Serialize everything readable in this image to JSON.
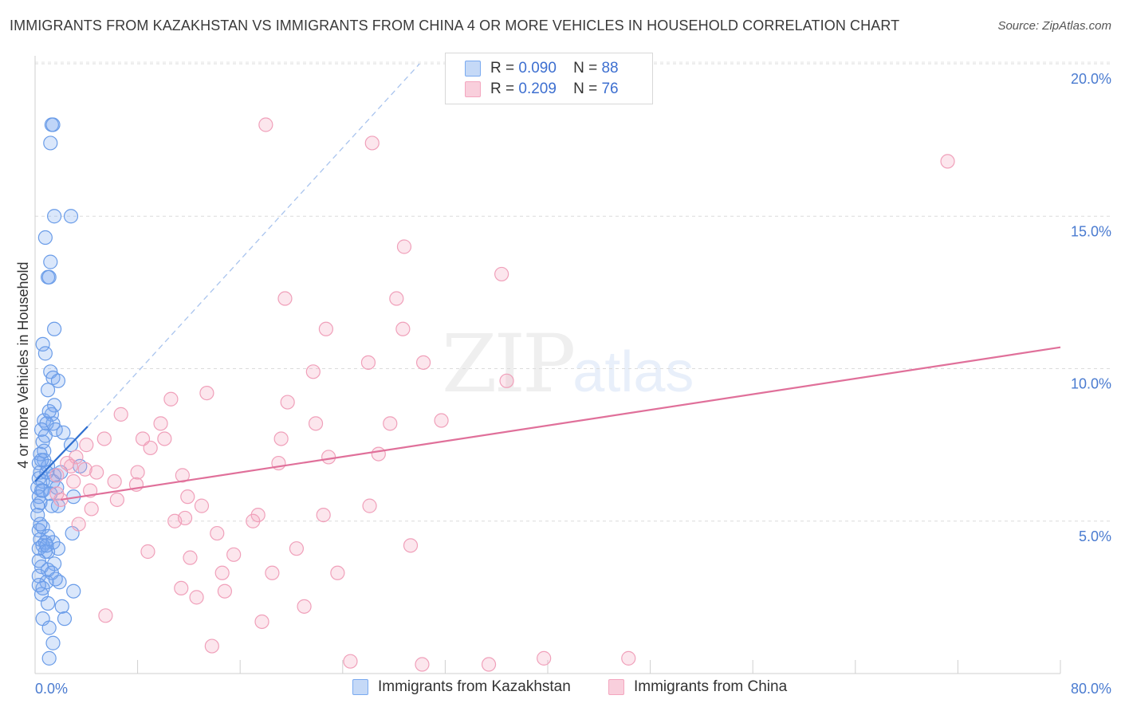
{
  "title": "IMMIGRANTS FROM KAZAKHSTAN VS IMMIGRANTS FROM CHINA 4 OR MORE VEHICLES IN HOUSEHOLD CORRELATION CHART",
  "source": "Source: ZipAtlas.com",
  "watermark": {
    "zip": "ZIP",
    "atlas": "atlas"
  },
  "legend": {
    "kazakhstan": {
      "r_label": "R =",
      "r_value": "0.090",
      "n_label": "N =",
      "n_value": "88"
    },
    "china": {
      "r_label": "R =",
      "r_value": "0.209",
      "n_label": "N =",
      "n_value": "76"
    }
  },
  "colors": {
    "kazakhstan": "#7aaaf0",
    "china": "#f4a6bf",
    "kaz_line": "#2f6fd0",
    "china_line": "#e0709a",
    "axis_text": "#4a7bd0"
  },
  "chart_data": {
    "type": "scatter",
    "title": "IMMIGRANTS FROM KAZAKHSTAN VS IMMIGRANTS FROM CHINA 4 OR MORE VEHICLES IN HOUSEHOLD CORRELATION CHART",
    "xlabel": "",
    "ylabel": "4 or more Vehicles in Household",
    "xlim": [
      0,
      80
    ],
    "ylim": [
      0,
      21
    ],
    "x_tick_labels": [
      "0.0%",
      "80.0%"
    ],
    "y_ticks": [
      5,
      10,
      15,
      20
    ],
    "y_tick_labels": [
      "5.0%",
      "10.0%",
      "15.0%",
      "20.0%"
    ],
    "legend_position": "top-center",
    "series": [
      {
        "name": "Immigrants from Kazakhstan",
        "r": 0.09,
        "n": 88,
        "trend": {
          "x": [
            0,
            4.1
          ],
          "y": [
            6.3,
            8.1
          ],
          "extended_x": [
            4.1,
            30
          ],
          "extended_y": [
            8.1,
            20.0
          ]
        },
        "points": [
          [
            1.3,
            18.0
          ],
          [
            1.4,
            18.0
          ],
          [
            1.2,
            17.4
          ],
          [
            1.5,
            15.0
          ],
          [
            2.8,
            15.0
          ],
          [
            0.8,
            14.3
          ],
          [
            1.2,
            13.5
          ],
          [
            1.0,
            13.0
          ],
          [
            1.1,
            13.0
          ],
          [
            1.5,
            11.3
          ],
          [
            0.6,
            10.8
          ],
          [
            0.8,
            10.5
          ],
          [
            1.2,
            9.9
          ],
          [
            1.4,
            9.7
          ],
          [
            1.8,
            9.6
          ],
          [
            1.0,
            9.3
          ],
          [
            1.5,
            8.8
          ],
          [
            1.3,
            8.5
          ],
          [
            0.7,
            8.3
          ],
          [
            1.4,
            8.2
          ],
          [
            0.9,
            8.2
          ],
          [
            0.5,
            8.0
          ],
          [
            1.6,
            8.0
          ],
          [
            0.8,
            7.8
          ],
          [
            0.6,
            7.6
          ],
          [
            2.8,
            7.5
          ],
          [
            0.4,
            7.2
          ],
          [
            0.7,
            7.0
          ],
          [
            0.3,
            6.9
          ],
          [
            1.0,
            6.8
          ],
          [
            3.5,
            6.8
          ],
          [
            0.4,
            6.6
          ],
          [
            1.5,
            6.5
          ],
          [
            0.3,
            6.4
          ],
          [
            0.6,
            6.3
          ],
          [
            1.4,
            6.3
          ],
          [
            0.2,
            6.1
          ],
          [
            0.5,
            6.0
          ],
          [
            0.3,
            5.8
          ],
          [
            3.0,
            5.8
          ],
          [
            0.4,
            5.6
          ],
          [
            0.2,
            5.5
          ],
          [
            1.3,
            5.5
          ],
          [
            1.8,
            5.5
          ],
          [
            0.6,
            4.8
          ],
          [
            0.3,
            4.7
          ],
          [
            2.9,
            4.6
          ],
          [
            1.0,
            4.5
          ],
          [
            0.4,
            4.4
          ],
          [
            0.8,
            4.3
          ],
          [
            1.4,
            4.3
          ],
          [
            0.6,
            4.2
          ],
          [
            0.3,
            4.1
          ],
          [
            1.8,
            4.1
          ],
          [
            1.0,
            4.0
          ],
          [
            1.5,
            3.6
          ],
          [
            0.5,
            3.5
          ],
          [
            1.0,
            3.4
          ],
          [
            1.3,
            3.3
          ],
          [
            0.3,
            3.2
          ],
          [
            0.9,
            3.0
          ],
          [
            1.9,
            3.0
          ],
          [
            0.6,
            2.8
          ],
          [
            3.0,
            2.7
          ],
          [
            0.5,
            2.6
          ],
          [
            1.0,
            2.3
          ],
          [
            2.1,
            2.2
          ],
          [
            0.6,
            1.8
          ],
          [
            2.3,
            1.8
          ],
          [
            1.1,
            1.5
          ],
          [
            1.4,
            1.0
          ],
          [
            1.1,
            0.5
          ],
          [
            0.9,
            6.6
          ],
          [
            0.5,
            7.0
          ],
          [
            1.7,
            6.1
          ],
          [
            0.2,
            5.2
          ],
          [
            0.8,
            4.0
          ],
          [
            0.3,
            3.7
          ],
          [
            2.2,
            7.9
          ],
          [
            1.1,
            8.6
          ],
          [
            0.6,
            6.0
          ],
          [
            0.4,
            4.9
          ],
          [
            1.2,
            5.9
          ],
          [
            0.7,
            7.3
          ],
          [
            0.9,
            4.2
          ],
          [
            1.6,
            3.1
          ],
          [
            0.3,
            2.9
          ],
          [
            2.0,
            6.6
          ]
        ]
      },
      {
        "name": "Immigrants from China",
        "r": 0.209,
        "n": 76,
        "trend": {
          "x": [
            2.0,
            80.0
          ],
          "y": [
            5.7,
            10.7
          ]
        },
        "points": [
          [
            18.0,
            18.0
          ],
          [
            26.3,
            17.4
          ],
          [
            71.2,
            16.8
          ],
          [
            28.8,
            14.0
          ],
          [
            36.4,
            13.1
          ],
          [
            19.5,
            12.3
          ],
          [
            28.2,
            12.3
          ],
          [
            22.7,
            11.3
          ],
          [
            28.7,
            11.3
          ],
          [
            26.0,
            10.2
          ],
          [
            30.3,
            10.2
          ],
          [
            21.7,
            9.9
          ],
          [
            36.8,
            9.6
          ],
          [
            13.4,
            9.2
          ],
          [
            10.6,
            9.0
          ],
          [
            19.7,
            8.9
          ],
          [
            6.7,
            8.5
          ],
          [
            9.8,
            8.2
          ],
          [
            21.9,
            8.2
          ],
          [
            27.7,
            8.2
          ],
          [
            31.7,
            8.3
          ],
          [
            5.4,
            7.7
          ],
          [
            8.4,
            7.7
          ],
          [
            10.1,
            7.7
          ],
          [
            19.2,
            7.7
          ],
          [
            4.0,
            7.5
          ],
          [
            9.0,
            7.4
          ],
          [
            3.2,
            7.1
          ],
          [
            22.9,
            7.1
          ],
          [
            26.8,
            7.2
          ],
          [
            2.8,
            6.8
          ],
          [
            4.8,
            6.6
          ],
          [
            8.0,
            6.6
          ],
          [
            19.0,
            6.9
          ],
          [
            11.5,
            6.5
          ],
          [
            1.7,
            6.5
          ],
          [
            3.0,
            6.3
          ],
          [
            6.2,
            6.3
          ],
          [
            7.9,
            6.2
          ],
          [
            4.3,
            6.0
          ],
          [
            1.7,
            5.9
          ],
          [
            11.9,
            5.8
          ],
          [
            6.4,
            5.7
          ],
          [
            2.0,
            5.7
          ],
          [
            13.0,
            5.5
          ],
          [
            4.4,
            5.4
          ],
          [
            17.4,
            5.2
          ],
          [
            22.5,
            5.2
          ],
          [
            26.1,
            5.5
          ],
          [
            10.9,
            5.0
          ],
          [
            11.7,
            5.1
          ],
          [
            17.0,
            5.0
          ],
          [
            3.4,
            4.9
          ],
          [
            14.2,
            4.6
          ],
          [
            29.3,
            4.2
          ],
          [
            8.8,
            4.0
          ],
          [
            15.5,
            3.9
          ],
          [
            12.1,
            3.8
          ],
          [
            20.4,
            4.1
          ],
          [
            14.6,
            3.3
          ],
          [
            18.5,
            3.3
          ],
          [
            23.6,
            3.3
          ],
          [
            11.4,
            2.8
          ],
          [
            14.8,
            2.7
          ],
          [
            12.6,
            2.5
          ],
          [
            21.0,
            2.2
          ],
          [
            5.5,
            1.9
          ],
          [
            17.7,
            1.7
          ],
          [
            13.8,
            0.9
          ],
          [
            24.6,
            0.4
          ],
          [
            30.2,
            0.3
          ],
          [
            35.4,
            0.3
          ],
          [
            39.7,
            0.5
          ],
          [
            46.3,
            0.5
          ],
          [
            2.5,
            6.9
          ],
          [
            3.9,
            6.7
          ]
        ]
      }
    ]
  }
}
